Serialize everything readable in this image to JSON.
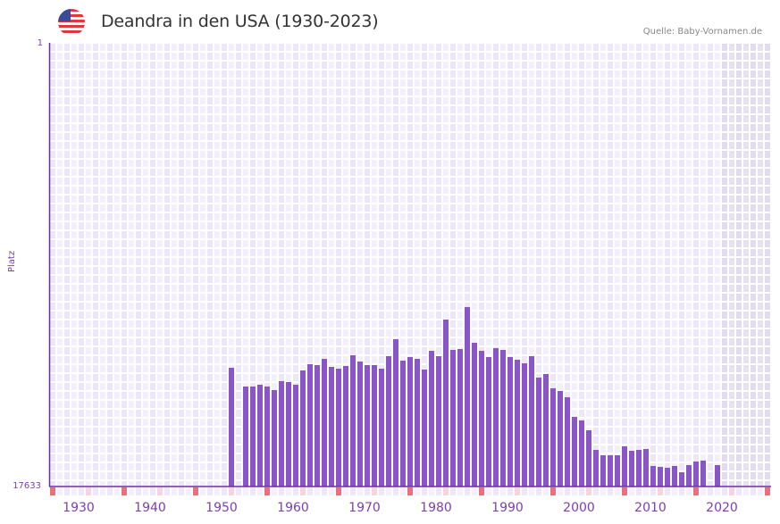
{
  "header": {
    "title": "Deandra in den USA (1930-2023)",
    "source": "Quelle: Baby-Vornamen.de",
    "flag_icon": "usa-flag-icon"
  },
  "colors": {
    "bar": "#8a55c9",
    "axis": "#6a2fa0",
    "label": "#7a3fae",
    "grid_a": "#ede8f8",
    "grid_b": "#f3f0fb",
    "shade": "#e2dcee",
    "marker_red": "#e5737b",
    "marker_pink": "#f5d5de"
  },
  "chart_data": {
    "type": "bar",
    "title": "Deandra in den USA (1930-2023)",
    "xlabel": "",
    "ylabel": "Platz",
    "y_inverted": true,
    "ylim": [
      1,
      17633
    ],
    "yticks": [
      "1",
      "17633"
    ],
    "xticks": [
      "1930",
      "1940",
      "1950",
      "1960",
      "1970",
      "1980",
      "1990",
      "2000",
      "2010",
      "2020"
    ],
    "x_range": [
      1928,
      2028
    ],
    "shaded_from_year": 2022,
    "grid": true,
    "categories": [
      1953,
      1955,
      1956,
      1957,
      1958,
      1959,
      1960,
      1961,
      1962,
      1963,
      1964,
      1965,
      1966,
      1967,
      1968,
      1969,
      1970,
      1971,
      1972,
      1973,
      1974,
      1975,
      1976,
      1977,
      1978,
      1979,
      1980,
      1981,
      1982,
      1983,
      1984,
      1985,
      1986,
      1987,
      1988,
      1989,
      1990,
      1991,
      1992,
      1993,
      1994,
      1995,
      1996,
      1997,
      1998,
      1999,
      2000,
      2001,
      2002,
      2003,
      2004,
      2005,
      2006,
      2007,
      2008,
      2009,
      2010,
      2011,
      2012,
      2013,
      2014,
      2015,
      2016,
      2017,
      2018,
      2019,
      2021
    ],
    "values": [
      12914,
      13659,
      13659,
      13588,
      13659,
      13801,
      13446,
      13482,
      13588,
      13021,
      12773,
      12808,
      12560,
      12879,
      12950,
      12844,
      12418,
      12666,
      12808,
      12808,
      12950,
      12453,
      11779,
      12631,
      12489,
      12560,
      12986,
      12241,
      12453,
      10999,
      12205,
      12170,
      10502,
      11921,
      12241,
      12489,
      12134,
      12205,
      12489,
      12595,
      12737,
      12453,
      13305,
      13163,
      13730,
      13837,
      14085,
      14866,
      15008,
      15398,
      16179,
      16392,
      16392,
      16392,
      16037,
      16214,
      16179,
      16143,
      16817,
      16853,
      16888,
      16817,
      17066,
      16782,
      16640,
      16604,
      16782
    ]
  }
}
